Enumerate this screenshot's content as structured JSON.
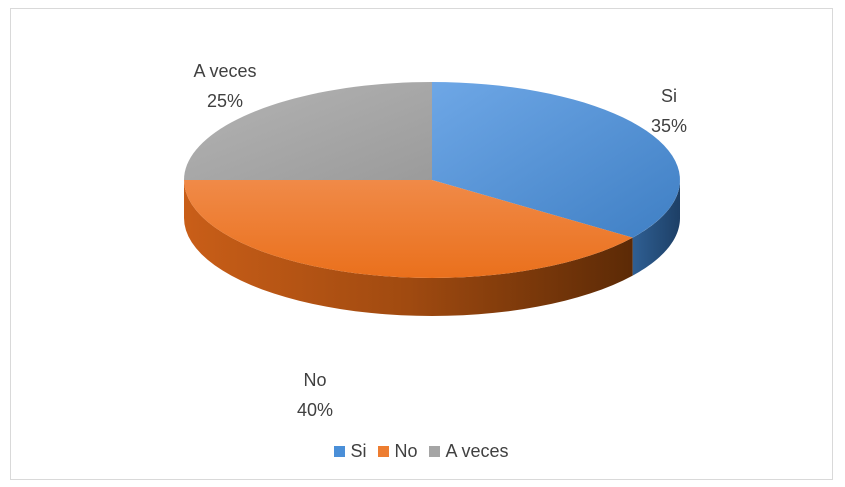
{
  "chart_data": {
    "type": "pie",
    "title": "",
    "categories": [
      "Si",
      "No",
      "A veces"
    ],
    "values": [
      35,
      40,
      25
    ],
    "labels": [
      {
        "name": "Si",
        "percent": "35%"
      },
      {
        "name": "No",
        "percent": "40%"
      },
      {
        "name": "A veces",
        "percent": "25%"
      }
    ],
    "colors": [
      "#4a8fd8",
      "#ed7d31",
      "#a5a5a5"
    ],
    "legend_position": "bottom",
    "style": "3d"
  }
}
